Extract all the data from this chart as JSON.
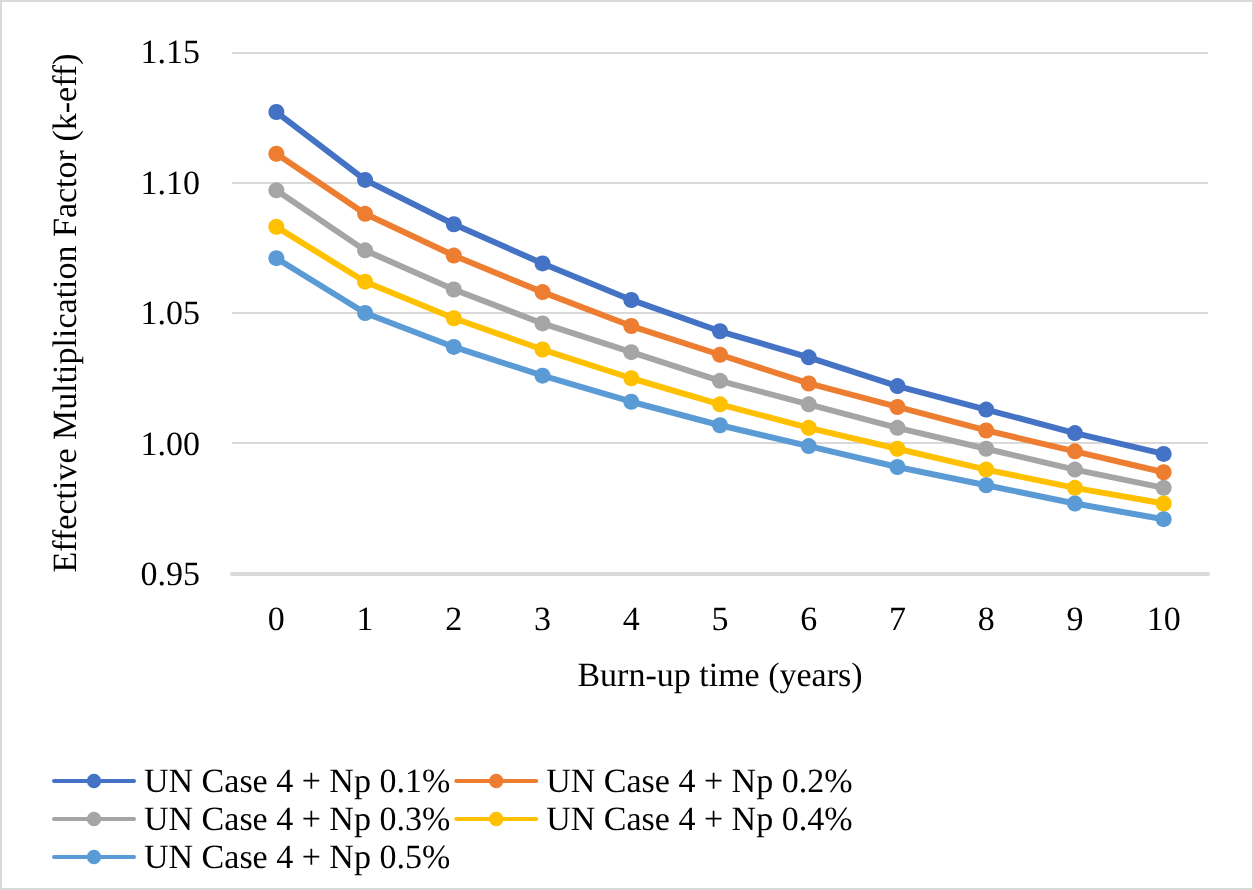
{
  "chart_data": {
    "type": "line",
    "xlabel": "Burn-up time (years)",
    "ylabel": "Effective Multiplication Factor (k-eff)",
    "categories": [
      "0",
      "1",
      "2",
      "3",
      "4",
      "5",
      "6",
      "7",
      "8",
      "9",
      "10"
    ],
    "series": [
      {
        "name": "UN Case 4 + Np 0.1%",
        "color": "#4472c4",
        "values": [
          1.127,
          1.101,
          1.084,
          1.069,
          1.055,
          1.043,
          1.033,
          1.022,
          1.013,
          1.004,
          0.996
        ]
      },
      {
        "name": "UN Case 4 + Np 0.2%",
        "color": "#ed7d31",
        "values": [
          1.111,
          1.088,
          1.072,
          1.058,
          1.045,
          1.034,
          1.023,
          1.014,
          1.005,
          0.997,
          0.989
        ]
      },
      {
        "name": "UN Case 4 + Np 0.3%",
        "color": "#a5a5a5",
        "values": [
          1.097,
          1.074,
          1.059,
          1.046,
          1.035,
          1.024,
          1.015,
          1.006,
          0.998,
          0.99,
          0.983
        ]
      },
      {
        "name": "UN Case 4 + Np 0.4%",
        "color": "#ffc000",
        "values": [
          1.083,
          1.062,
          1.048,
          1.036,
          1.025,
          1.015,
          1.006,
          0.998,
          0.99,
          0.983,
          0.977
        ]
      },
      {
        "name": "UN Case 4 + Np 0.5%",
        "color": "#5b9bd5",
        "values": [
          1.071,
          1.05,
          1.037,
          1.026,
          1.016,
          1.007,
          0.999,
          0.991,
          0.984,
          0.977,
          0.971
        ]
      }
    ],
    "ylim": [
      0.95,
      1.15
    ],
    "yticks": [
      0.95,
      {
        "value": 1.0,
        "label": "1.00"
      },
      1.05,
      {
        "value": 1.1,
        "label": "1.10"
      },
      1.15
    ],
    "grid": "y",
    "legend": "bottom",
    "marker": "circle",
    "line_style": "solid"
  }
}
